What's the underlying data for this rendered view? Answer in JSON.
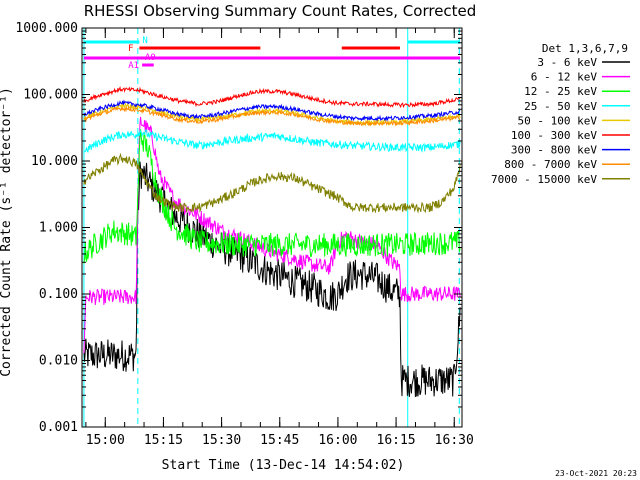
{
  "chart_data": {
    "type": "line",
    "title": "RHESSI Observing Summary Count Rates, Corrected",
    "xlabel": "Start Time (13-Dec-14 14:54:02)",
    "ylabel": "Corrected Count Rate (s⁻¹ detector⁻¹)",
    "date_stamp": "23-Oct-2021 20:23",
    "y_scale": "log",
    "ylim": [
      0.001,
      1000
    ],
    "xlim_minutes": [
      0,
      98
    ],
    "x_ticks": [
      {
        "t": 6,
        "label": "15:00"
      },
      {
        "t": 21,
        "label": "15:15"
      },
      {
        "t": 36,
        "label": "15:30"
      },
      {
        "t": 51,
        "label": "15:45"
      },
      {
        "t": 66,
        "label": "16:00"
      },
      {
        "t": 81,
        "label": "16:15"
      },
      {
        "t": 96,
        "label": "16:30"
      }
    ],
    "y_ticks": [
      {
        "v": 1000,
        "label": "1000.000"
      },
      {
        "v": 100,
        "label": "100.000"
      },
      {
        "v": 10,
        "label": "10.000"
      },
      {
        "v": 1,
        "label": "1.000"
      },
      {
        "v": 0.1,
        "label": "0.100"
      },
      {
        "v": 0.01,
        "label": "0.010"
      },
      {
        "v": 0.001,
        "label": "0.001"
      }
    ],
    "legend_title": "Det 1,3,6,7,9",
    "legend_placement": "right",
    "series": [
      {
        "name": "3 - 6 keV",
        "color": "#000000",
        "x": [
          0.5,
          14,
          14.3,
          15,
          17,
          20,
          24,
          30,
          36,
          42,
          48,
          54,
          60,
          64,
          66,
          68,
          72,
          76,
          80,
          82,
          82.3,
          96,
          97.5
        ],
        "y": [
          0.012,
          0.012,
          1.2,
          7,
          5,
          3,
          1.5,
          0.8,
          0.5,
          0.35,
          0.22,
          0.16,
          0.12,
          0.09,
          0.1,
          0.18,
          0.2,
          0.17,
          0.11,
          0.1,
          0.005,
          0.005,
          0.05
        ]
      },
      {
        "name": "6 - 12 keV",
        "color": "#ff00ff",
        "x": [
          0.5,
          1,
          14,
          14.5,
          15,
          16,
          18,
          20,
          24,
          30,
          36,
          42,
          48,
          54,
          60,
          64,
          66,
          68,
          72,
          76,
          80,
          82,
          82.3,
          97.5
        ],
        "y": [
          0.015,
          0.09,
          0.09,
          5,
          40,
          35,
          25,
          6,
          2.5,
          1.5,
          0.9,
          0.65,
          0.45,
          0.35,
          0.27,
          0.25,
          0.6,
          0.75,
          0.6,
          0.55,
          0.3,
          0.25,
          0.1,
          0.1
        ]
      },
      {
        "name": "12 - 25 keV",
        "color": "#00ff00",
        "x": [
          0.5,
          4,
          8,
          12,
          14,
          15,
          17,
          20,
          24,
          30,
          40,
          50,
          60,
          70,
          82,
          97.5
        ],
        "y": [
          0.4,
          0.6,
          0.9,
          0.8,
          0.7,
          25,
          15,
          3,
          1,
          0.6,
          0.55,
          0.55,
          0.55,
          0.55,
          0.55,
          0.6
        ]
      },
      {
        "name": "25 - 50 keV",
        "color": "#00ffff",
        "x": [
          0.5,
          5,
          10,
          14,
          15,
          18,
          24,
          30,
          40,
          50,
          60,
          70,
          80,
          90,
          97.5
        ],
        "y": [
          14,
          20,
          25,
          25,
          28,
          24,
          20,
          17,
          21,
          24,
          19,
          17,
          16,
          16,
          18
        ]
      },
      {
        "name": "50 - 100 keV",
        "color": "#e8c800",
        "x": [
          0.5,
          5,
          10,
          15,
          20,
          25,
          30,
          35,
          40,
          45,
          50,
          55,
          60,
          65,
          70,
          75,
          80,
          85,
          90,
          97.5
        ],
        "y": [
          45,
          55,
          68,
          65,
          55,
          46,
          42,
          45,
          50,
          56,
          57,
          52,
          45,
          40,
          38,
          38,
          38,
          40,
          42,
          48
        ]
      },
      {
        "name": "100 - 300 keV",
        "color": "#ff0000",
        "x": [
          0.5,
          5,
          10,
          15,
          20,
          25,
          30,
          35,
          40,
          45,
          50,
          55,
          60,
          65,
          70,
          75,
          80,
          85,
          90,
          97.5
        ],
        "y": [
          80,
          100,
          120,
          115,
          95,
          80,
          72,
          78,
          95,
          110,
          112,
          100,
          85,
          75,
          72,
          72,
          70,
          70,
          72,
          85
        ]
      },
      {
        "name": "300 - 800 keV",
        "color": "#0000ff",
        "x": [
          0.5,
          5,
          10,
          15,
          20,
          25,
          30,
          35,
          40,
          45,
          50,
          55,
          60,
          65,
          70,
          75,
          80,
          85,
          90,
          97.5
        ],
        "y": [
          50,
          62,
          75,
          70,
          60,
          50,
          46,
          50,
          58,
          65,
          66,
          60,
          52,
          47,
          44,
          44,
          44,
          46,
          48,
          55
        ]
      },
      {
        "name": "800 - 7000 keV",
        "color": "#ff8c00",
        "x": [
          0.5,
          5,
          10,
          15,
          20,
          25,
          30,
          35,
          40,
          45,
          50,
          55,
          60,
          65,
          70,
          75,
          80,
          85,
          90,
          97.5
        ],
        "y": [
          42,
          52,
          62,
          58,
          50,
          42,
          39,
          42,
          48,
          53,
          54,
          50,
          43,
          39,
          37,
          37,
          37,
          38,
          40,
          45
        ]
      },
      {
        "name": "7000 - 15000 keV",
        "color": "#808000",
        "x": [
          0.5,
          4,
          8,
          11,
          14,
          15,
          17,
          19,
          21,
          23,
          25,
          30,
          35,
          40,
          45,
          50,
          55,
          60,
          65,
          70,
          75,
          80,
          85,
          90,
          93,
          96,
          97.5
        ],
        "y": [
          5,
          7,
          10,
          11,
          9,
          7,
          4.5,
          3,
          2.5,
          2.2,
          2,
          2,
          2.5,
          3.5,
          5,
          6,
          5.5,
          4,
          3,
          2,
          2,
          2,
          2,
          2,
          2.5,
          4,
          8
        ]
      }
    ],
    "attenuator_bars": [
      {
        "label": "N",
        "color": "#00ffff",
        "x0": 0.5,
        "x1": 14.8
      },
      {
        "label": "",
        "color": "#00ffff",
        "x0": 84,
        "x1": 97.5
      },
      {
        "label": "F",
        "color": "#ff0000",
        "x0": 14.8,
        "x1": 46
      },
      {
        "label": "",
        "color": "#ff0000",
        "x0": 67,
        "x1": 82
      },
      {
        "label": "",
        "color": "#ff00ff",
        "x0": 0.5,
        "x1": 97.5
      },
      {
        "label": "A1",
        "color": "#ff00ff",
        "x0": 15.5,
        "x1": 18.5
      },
      {
        "label": "A0",
        "color": "#ff00ff",
        "x0": 16.2,
        "x1": 16.2
      }
    ],
    "vertical_markers": [
      {
        "t": 0.5,
        "color": "#00ffff",
        "style": "solid"
      },
      {
        "t": 14.4,
        "color": "#00ffff",
        "style": "dashed"
      },
      {
        "t": 84,
        "color": "#00ffff",
        "style": "solid"
      },
      {
        "t": 97.3,
        "color": "#00ffff",
        "style": "dashed"
      }
    ]
  }
}
